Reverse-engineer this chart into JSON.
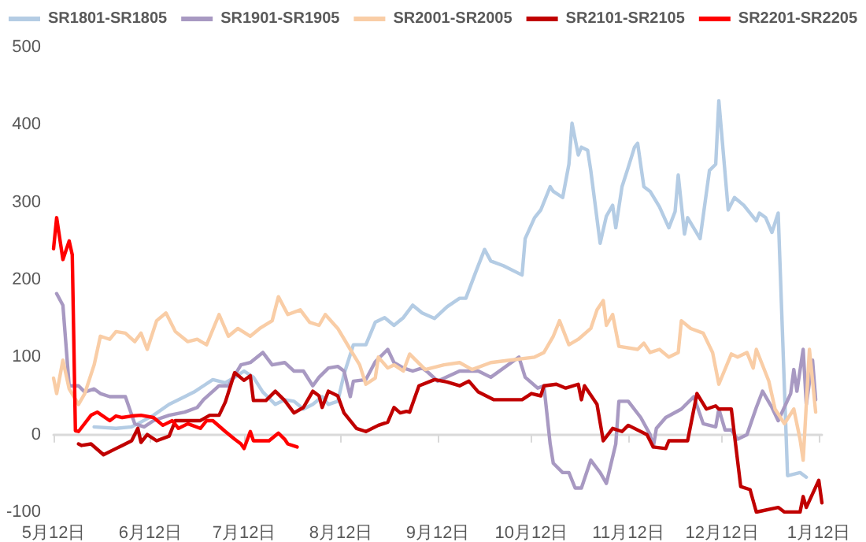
{
  "chart_data": {
    "type": "line",
    "legend": "top",
    "marker": "none",
    "line_style": "solid",
    "ylim": [
      -100,
      500
    ],
    "yticks": [
      -100,
      0,
      100,
      200,
      300,
      400,
      500
    ],
    "categories": [
      "5月12日",
      null,
      null,
      null,
      null,
      null,
      null,
      null,
      null,
      null,
      null,
      null,
      null,
      null,
      null,
      null,
      null,
      null,
      null,
      null,
      null,
      null,
      null,
      null,
      null,
      null,
      null,
      null,
      null,
      null,
      null,
      "6月12日",
      null,
      null,
      null,
      null,
      null,
      null,
      null,
      null,
      null,
      null,
      null,
      null,
      null,
      null,
      null,
      null,
      null,
      null,
      null,
      null,
      null,
      null,
      null,
      null,
      null,
      null,
      null,
      null,
      null,
      "7月12日",
      null,
      null,
      null,
      null,
      null,
      null,
      null,
      null,
      null,
      null,
      null,
      null,
      null,
      null,
      null,
      null,
      null,
      null,
      null,
      null,
      null,
      null,
      null,
      null,
      null,
      null,
      null,
      null,
      null,
      null,
      "8月12日",
      null,
      null,
      null,
      null,
      null,
      null,
      null,
      null,
      null,
      null,
      null,
      null,
      null,
      null,
      null,
      null,
      null,
      null,
      null,
      null,
      null,
      null,
      null,
      null,
      null,
      null,
      null,
      null,
      null,
      null,
      "9月12日",
      null,
      null,
      null,
      null,
      null,
      null,
      null,
      null,
      null,
      null,
      null,
      null,
      null,
      null,
      null,
      null,
      null,
      null,
      null,
      null,
      null,
      null,
      null,
      null,
      null,
      null,
      null,
      null,
      null,
      "10月12日",
      null,
      null,
      null,
      null,
      null,
      null,
      null,
      null,
      null,
      null,
      null,
      null,
      null,
      null,
      null,
      null,
      null,
      null,
      null,
      null,
      null,
      null,
      null,
      null,
      null,
      null,
      null,
      null,
      null,
      null,
      "11月12日",
      null,
      null,
      null,
      null,
      null,
      null,
      null,
      null,
      null,
      null,
      null,
      null,
      null,
      null,
      null,
      null,
      null,
      null,
      null,
      null,
      null,
      null,
      null,
      null,
      null,
      null,
      null,
      null,
      null,
      "12月12日",
      null,
      null,
      null,
      null,
      null,
      null,
      null,
      null,
      null,
      null,
      null,
      null,
      null,
      null,
      null,
      null,
      null,
      null,
      null,
      null,
      null,
      null,
      null,
      null,
      null,
      null,
      null,
      null,
      null,
      null,
      "1月12日",
      null
    ],
    "series": [
      {
        "name": "SR1801-SR1805",
        "color": "#b4cce4",
        "values": [
          null,
          null,
          null,
          null,
          null,
          null,
          null,
          null,
          null,
          null,
          null,
          null,
          null,
          10,
          null,
          null,
          null,
          null,
          null,
          null,
          8,
          null,
          null,
          null,
          null,
          10,
          null,
          14,
          null,
          null,
          null,
          null,
          25,
          null,
          null,
          null,
          null,
          39,
          null,
          null,
          null,
          null,
          49,
          null,
          null,
          55,
          null,
          null,
          63,
          null,
          null,
          71,
          null,
          null,
          null,
          67,
          null,
          null,
          74,
          null,
          null,
          82,
          null,
          null,
          74,
          null,
          null,
          55,
          null,
          null,
          null,
          39,
          null,
          null,
          45,
          null,
          null,
          43,
          null,
          null,
          33,
          null,
          null,
          39,
          null,
          null,
          49,
          null,
          39,
          null,
          null,
          43,
          null,
          78,
          null,
          null,
          116,
          null,
          null,
          null,
          116,
          null,
          null,
          145,
          null,
          null,
          151,
          null,
          null,
          141,
          null,
          null,
          151,
          null,
          null,
          167,
          null,
          null,
          157,
          null,
          null,
          null,
          150,
          null,
          null,
          null,
          165,
          null,
          null,
          null,
          176,
          null,
          176,
          null,
          null,
          208,
          null,
          null,
          239,
          null,
          224,
          null,
          null,
          null,
          218,
          null,
          null,
          null,
          null,
          null,
          206,
          253,
          null,
          null,
          280,
          null,
          290,
          null,
          null,
          320,
          314,
          null,
          null,
          306,
          null,
          349,
          402,
          null,
          361,
          371,
          null,
          367,
          341,
          null,
          null,
          247,
          null,
          282,
          null,
          296,
          267,
          null,
          320,
          null,
          345,
          null,
          371,
          376,
          null,
          320,
          null,
          314,
          null,
          null,
          294,
          null,
          null,
          267,
          null,
          288,
          335,
          null,
          259,
          280,
          null,
          null,
          null,
          253,
          null,
          null,
          341,
          null,
          349,
          431,
          null,
          null,
          290,
          null,
          306,
          null,
          null,
          296,
          null,
          null,
          null,
          276,
          286,
          null,
          280,
          null,
          261,
          null,
          286,
          null,
          null,
          -53,
          null,
          null,
          null,
          -49,
          null,
          -55,
          null,
          null,
          null,
          null,
          null
        ]
      },
      {
        "name": "SR1901-SR1905",
        "color": "#a899c2",
        "values": [
          null,
          182,
          null,
          167,
          null,
          63,
          null,
          null,
          63,
          null,
          55,
          null,
          null,
          59,
          null,
          53,
          null,
          null,
          49,
          null,
          49,
          null,
          null,
          49,
          null,
          null,
          14,
          null,
          null,
          10,
          null,
          null,
          18,
          null,
          null,
          null,
          null,
          25,
          null,
          null,
          null,
          null,
          29,
          null,
          null,
          null,
          35,
          null,
          45,
          null,
          null,
          null,
          null,
          63,
          null,
          null,
          63,
          null,
          null,
          null,
          90,
          null,
          null,
          93,
          null,
          null,
          null,
          106,
          null,
          null,
          90,
          null,
          null,
          null,
          93,
          null,
          null,
          82,
          null,
          null,
          82,
          null,
          null,
          63,
          null,
          74,
          null,
          null,
          86,
          null,
          null,
          88,
          null,
          82,
          null,
          49,
          69,
          null,
          null,
          null,
          71,
          null,
          null,
          94,
          null,
          null,
          null,
          110,
          null,
          93,
          null,
          null,
          86,
          null,
          null,
          82,
          null,
          null,
          86,
          null,
          80,
          null,
          null,
          69,
          null,
          null,
          null,
          null,
          null,
          null,
          82,
          null,
          null,
          null,
          null,
          null,
          82,
          null,
          null,
          null,
          74,
          null,
          null,
          null,
          null,
          null,
          null,
          null,
          null,
          100,
          null,
          74,
          null,
          null,
          null,
          60,
          null,
          63,
          null,
          -12,
          -37,
          null,
          null,
          -49,
          null,
          -49,
          null,
          -69,
          null,
          -69,
          null,
          null,
          -33,
          null,
          null,
          -49,
          null,
          -63,
          null,
          null,
          -12,
          43,
          null,
          null,
          43,
          null,
          null,
          null,
          22,
          null,
          null,
          0,
          -16,
          8,
          null,
          null,
          22,
          null,
          null,
          null,
          null,
          33,
          null,
          null,
          null,
          49,
          null,
          null,
          14,
          null,
          null,
          null,
          10,
          33,
          null,
          6,
          null,
          6,
          null,
          -6,
          null,
          null,
          0,
          null,
          null,
          35,
          null,
          56,
          null,
          null,
          35,
          null,
          18,
          null,
          null,
          null,
          53,
          84,
          56,
          null,
          110,
          39,
          null,
          96,
          45,
          null,
          null
        ]
      },
      {
        "name": "SR2001-SR2005",
        "color": "#f9cda6",
        "values": [
          73,
          53,
          null,
          96,
          null,
          59,
          null,
          null,
          39,
          null,
          53,
          null,
          null,
          90,
          null,
          127,
          null,
          null,
          123,
          null,
          133,
          null,
          null,
          131,
          null,
          null,
          120,
          null,
          131,
          null,
          110,
          null,
          null,
          147,
          null,
          null,
          157,
          null,
          null,
          133,
          null,
          null,
          null,
          120,
          null,
          null,
          123,
          null,
          null,
          116,
          null,
          null,
          null,
          155,
          null,
          null,
          127,
          null,
          null,
          137,
          null,
          null,
          null,
          127,
          null,
          null,
          137,
          null,
          null,
          null,
          147,
          null,
          178,
          null,
          null,
          155,
          null,
          null,
          null,
          161,
          null,
          null,
          145,
          null,
          null,
          141,
          null,
          155,
          null,
          null,
          null,
          137,
          null,
          null,
          null,
          110,
          null,
          null,
          90,
          null,
          65,
          null,
          null,
          73,
          100,
          null,
          null,
          86,
          null,
          90,
          null,
          null,
          82,
          null,
          104,
          null,
          null,
          null,
          null,
          84,
          null,
          null,
          null,
          null,
          null,
          90,
          null,
          null,
          null,
          null,
          93,
          null,
          null,
          null,
          84,
          null,
          null,
          null,
          null,
          null,
          93,
          null,
          null,
          null,
          null,
          null,
          96,
          null,
          null,
          null,
          null,
          null,
          null,
          null,
          100,
          null,
          null,
          106,
          null,
          null,
          127,
          null,
          147,
          null,
          null,
          116,
          null,
          null,
          123,
          null,
          null,
          null,
          137,
          null,
          161,
          null,
          173,
          141,
          null,
          155,
          null,
          114,
          null,
          null,
          null,
          null,
          null,
          110,
          null,
          118,
          null,
          106,
          null,
          null,
          110,
          null,
          null,
          100,
          null,
          null,
          106,
          147,
          null,
          null,
          137,
          null,
          null,
          null,
          131,
          null,
          null,
          106,
          null,
          65,
          null,
          null,
          null,
          104,
          null,
          100,
          null,
          null,
          106,
          null,
          86,
          110,
          null,
          null,
          null,
          69,
          null,
          33,
          null,
          null,
          14,
          null,
          null,
          33,
          null,
          -6,
          -33,
          null,
          110,
          null,
          29,
          null,
          null
        ]
      },
      {
        "name": "SR2101-SR2105",
        "color": "#c00000",
        "values": [
          null,
          null,
          null,
          null,
          null,
          null,
          null,
          null,
          -12,
          -14,
          null,
          null,
          -12,
          null,
          null,
          null,
          -26,
          null,
          null,
          null,
          -18,
          null,
          -14,
          null,
          null,
          -8,
          null,
          8,
          -10,
          null,
          0,
          null,
          null,
          -8,
          null,
          null,
          null,
          -2,
          null,
          18,
          null,
          null,
          null,
          18,
          null,
          null,
          null,
          18,
          null,
          null,
          25,
          null,
          null,
          25,
          null,
          42,
          null,
          null,
          80,
          null,
          null,
          70,
          null,
          76,
          44,
          null,
          null,
          null,
          44,
          null,
          null,
          56,
          null,
          null,
          44,
          null,
          null,
          28,
          null,
          null,
          35,
          null,
          null,
          56,
          null,
          50,
          35,
          null,
          56,
          null,
          null,
          50,
          null,
          28,
          null,
          null,
          null,
          8,
          null,
          null,
          4,
          null,
          null,
          null,
          12,
          null,
          null,
          16,
          null,
          35,
          null,
          28,
          null,
          30,
          29,
          null,
          null,
          63,
          null,
          null,
          null,
          null,
          71,
          null,
          null,
          null,
          68,
          null,
          null,
          null,
          63,
          null,
          null,
          69,
          null,
          null,
          55,
          null,
          null,
          null,
          null,
          45,
          null,
          null,
          null,
          null,
          null,
          null,
          null,
          null,
          45,
          null,
          null,
          53,
          null,
          null,
          50,
          63,
          null,
          null,
          null,
          65,
          null,
          null,
          60,
          null,
          null,
          null,
          65,
          45,
          63,
          null,
          null,
          null,
          39,
          null,
          -8,
          null,
          null,
          8,
          null,
          null,
          4,
          null,
          12,
          null,
          null,
          null,
          null,
          null,
          0,
          null,
          -16,
          null,
          null,
          null,
          -18,
          -8,
          null,
          null,
          null,
          null,
          null,
          -8,
          null,
          null,
          53,
          null,
          null,
          33,
          null,
          null,
          37,
          33,
          null,
          null,
          null,
          33,
          null,
          null,
          -67,
          null,
          null,
          -71,
          null,
          -100,
          null,
          null,
          null,
          null,
          null,
          null,
          -94,
          null,
          -100,
          null,
          null,
          -100,
          null,
          -100,
          -80,
          -94,
          null,
          null,
          null,
          -59,
          -88
        ]
      },
      {
        "name": "SR2201-SR2205",
        "color": "#ff0000",
        "values": [
          240,
          280,
          null,
          226,
          null,
          250,
          232,
          5,
          4,
          null,
          null,
          null,
          25,
          null,
          29,
          null,
          null,
          null,
          18,
          null,
          24,
          null,
          22,
          null,
          null,
          24,
          null,
          null,
          25,
          null,
          null,
          null,
          22,
          null,
          null,
          12,
          null,
          null,
          18,
          null,
          8,
          null,
          null,
          14,
          null,
          null,
          null,
          8,
          null,
          18,
          null,
          18,
          null,
          null,
          null,
          4,
          null,
          null,
          -6,
          null,
          -12,
          -18,
          null,
          4,
          -8,
          null,
          null,
          null,
          null,
          -8,
          null,
          null,
          2,
          null,
          -6,
          -12,
          null,
          null,
          -16,
          null,
          null,
          null,
          null,
          null,
          null,
          null,
          null,
          null,
          null,
          null,
          null,
          null,
          null,
          null,
          null,
          null,
          null,
          null,
          null,
          null,
          null,
          null,
          null,
          null,
          null,
          null,
          null,
          null,
          null,
          null,
          null,
          null,
          null,
          null,
          null,
          null,
          null,
          null,
          null,
          null,
          null,
          null,
          null,
          null,
          null,
          null,
          null,
          null,
          null,
          null,
          null,
          null,
          null,
          null,
          null,
          null,
          null,
          null,
          null,
          null,
          null,
          null,
          null,
          null,
          null,
          null,
          null,
          null,
          null,
          null,
          null,
          null,
          null,
          null,
          null,
          null,
          null,
          null,
          null,
          null,
          null,
          null,
          null,
          null,
          null,
          null,
          null,
          null,
          null,
          null,
          null,
          null,
          null,
          null,
          null,
          null,
          null,
          null,
          null,
          null,
          null,
          null,
          null,
          null,
          null,
          null,
          null,
          null,
          null,
          null,
          null,
          null,
          null,
          null,
          null,
          null,
          null,
          null,
          null,
          null,
          null,
          null,
          null,
          null,
          null,
          null,
          null,
          null,
          null,
          null,
          null,
          null,
          null,
          null,
          null,
          null,
          null,
          null,
          null,
          null,
          null,
          null,
          null,
          null,
          null,
          null,
          null,
          null,
          null,
          null,
          null,
          null,
          null,
          null,
          null,
          null,
          null,
          null,
          null,
          null,
          null,
          null,
          null,
          null,
          null,
          null,
          null
        ]
      }
    ]
  }
}
